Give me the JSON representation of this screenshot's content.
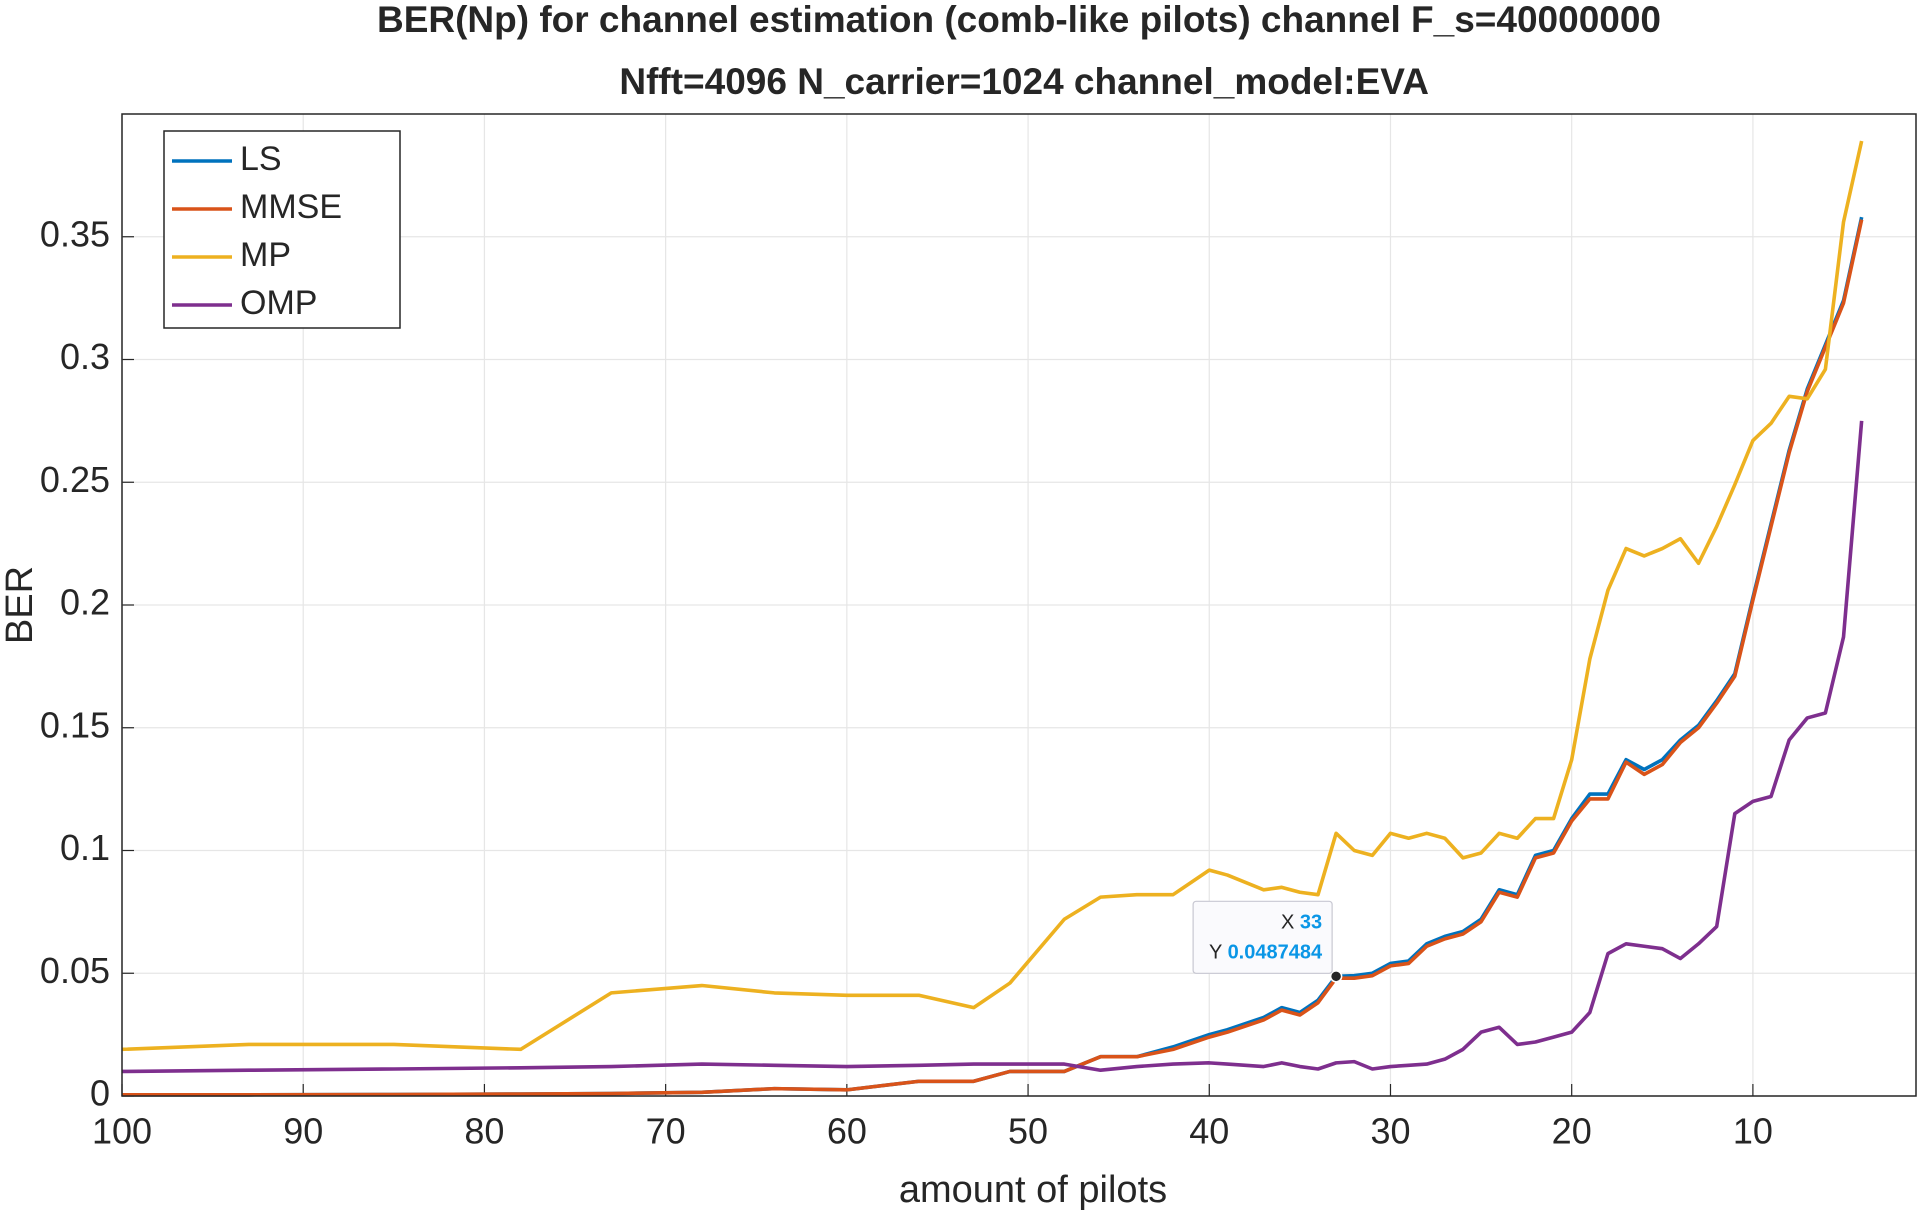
{
  "chart_data": {
    "type": "line",
    "title": [
      "BER(Np) for channel estimation (comb-like pilots) channel F_s=40000000",
      " Nfft=4096 N_carrier=1024 channel_model:EVA"
    ],
    "x_label": "amount of pilots",
    "y_label": "BER",
    "x": [
      100,
      93,
      85,
      78,
      73,
      68,
      64,
      60,
      56,
      53,
      51,
      48,
      46,
      44,
      42,
      40,
      39,
      37,
      36,
      35,
      34,
      33,
      32,
      31,
      30,
      29,
      28,
      27,
      26,
      25,
      24,
      23,
      22,
      21,
      20,
      19,
      18,
      17,
      16,
      15,
      14,
      13,
      12,
      11,
      10,
      9,
      8,
      7,
      6,
      5,
      4
    ],
    "series": [
      {
        "name": "LS",
        "color": "#0072BD",
        "values": [
          0.0005,
          0.0005,
          0.0006,
          0.0008,
          0.001,
          0.0015,
          0.003,
          0.0025,
          0.006,
          0.006,
          0.01,
          0.01,
          0.016,
          0.016,
          0.02,
          0.025,
          0.027,
          0.032,
          0.036,
          0.034,
          0.039,
          0.0487484,
          0.049,
          0.05,
          0.054,
          0.055,
          0.062,
          0.065,
          0.067,
          0.072,
          0.084,
          0.082,
          0.098,
          0.1,
          0.113,
          0.123,
          0.123,
          0.137,
          0.133,
          0.137,
          0.145,
          0.151,
          0.161,
          0.172,
          0.203,
          0.233,
          0.263,
          0.288,
          0.306,
          0.324,
          0.358
        ]
      },
      {
        "name": "MMSE",
        "color": "#D95319",
        "values": [
          0.0005,
          0.0005,
          0.0006,
          0.0008,
          0.001,
          0.0015,
          0.003,
          0.0025,
          0.006,
          0.006,
          0.01,
          0.01,
          0.016,
          0.016,
          0.019,
          0.024,
          0.026,
          0.031,
          0.035,
          0.033,
          0.038,
          0.048,
          0.048,
          0.049,
          0.053,
          0.054,
          0.061,
          0.064,
          0.066,
          0.071,
          0.083,
          0.081,
          0.097,
          0.099,
          0.112,
          0.121,
          0.121,
          0.136,
          0.131,
          0.135,
          0.144,
          0.15,
          0.16,
          0.171,
          0.202,
          0.232,
          0.262,
          0.287,
          0.305,
          0.323,
          0.357
        ]
      },
      {
        "name": "MP",
        "color": "#EDB120",
        "values": [
          0.019,
          0.021,
          0.021,
          0.019,
          0.042,
          0.045,
          0.042,
          0.041,
          0.041,
          0.036,
          0.046,
          0.072,
          0.081,
          0.082,
          0.082,
          0.092,
          0.09,
          0.084,
          0.085,
          0.083,
          0.082,
          0.107,
          0.1,
          0.098,
          0.107,
          0.105,
          0.107,
          0.105,
          0.097,
          0.099,
          0.107,
          0.105,
          0.113,
          0.113,
          0.137,
          0.178,
          0.206,
          0.223,
          0.22,
          0.223,
          0.227,
          0.217,
          0.232,
          0.249,
          0.267,
          0.274,
          0.285,
          0.284,
          0.296,
          0.356,
          0.389
        ]
      },
      {
        "name": "OMP",
        "color": "#7E2F8E",
        "values": [
          0.01,
          0.0105,
          0.011,
          0.0115,
          0.012,
          0.013,
          0.0125,
          0.012,
          0.0125,
          0.013,
          0.013,
          0.013,
          0.0105,
          0.012,
          0.013,
          0.0135,
          0.013,
          0.012,
          0.0135,
          0.012,
          0.011,
          0.0135,
          0.014,
          0.011,
          0.012,
          0.0125,
          0.013,
          0.015,
          0.019,
          0.026,
          0.028,
          0.021,
          0.022,
          0.024,
          0.026,
          0.034,
          0.058,
          0.062,
          0.061,
          0.06,
          0.056,
          0.062,
          0.069,
          0.115,
          0.12,
          0.122,
          0.145,
          0.154,
          0.156,
          0.187,
          0.275
        ]
      }
    ],
    "xlim": [
      100,
      1
    ],
    "xticks": [
      100,
      90,
      80,
      70,
      60,
      50,
      40,
      30,
      20,
      10
    ],
    "ylim": [
      0,
      0.4
    ],
    "yticks": [
      0,
      0.05,
      0.1,
      0.15,
      0.2,
      0.25,
      0.3,
      0.35
    ],
    "grid": true,
    "legend": "northwest",
    "datatip": {
      "x_label": "X",
      "x": 33,
      "y_label": "Y",
      "y": 0.0487484
    }
  }
}
